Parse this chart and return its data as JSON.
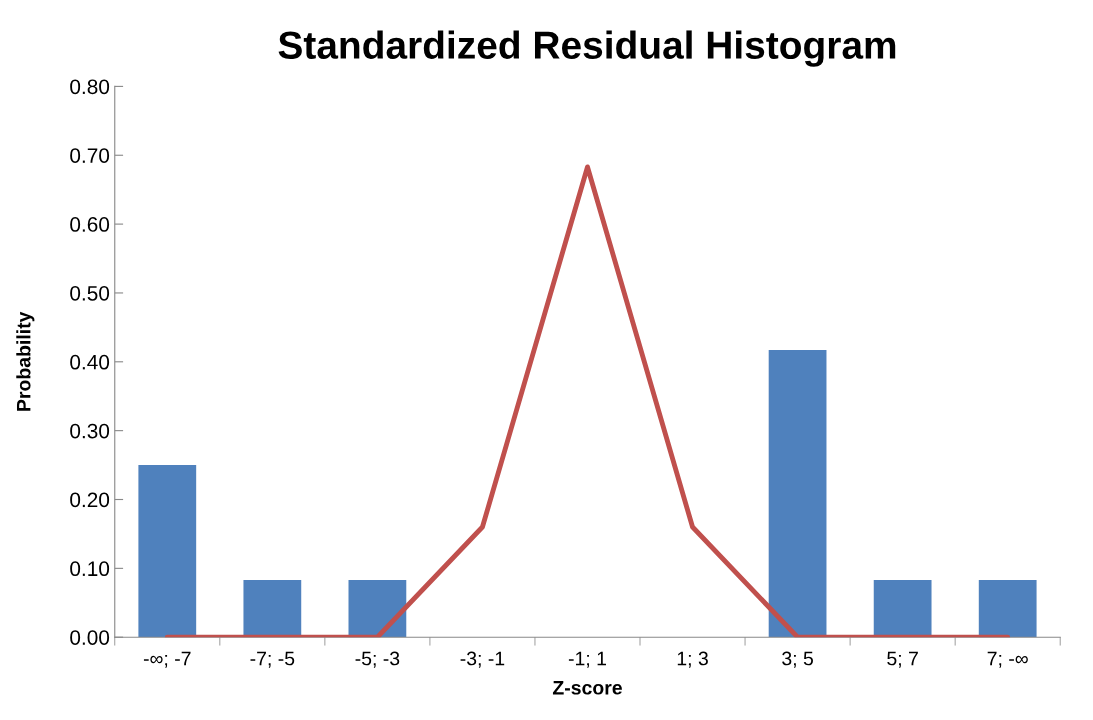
{
  "chart_data": {
    "type": "bar",
    "title": "Standardized Residual Histogram",
    "xlabel": "Z-score",
    "ylabel": "Probability",
    "categories": [
      "-∞; -7",
      "-7; -5",
      "-5; -3",
      "-3; -1",
      "-1; 1",
      "1; 3",
      "3; 5",
      "5; 7",
      "7; -∞"
    ],
    "series": [
      {
        "color": "#4f81bd",
        "values": [
          0.25,
          0.083,
          0.083,
          0,
          0,
          0,
          0.417,
          0.083,
          0.083
        ]
      },
      {
        "type": "line",
        "color": "#c0504d",
        "values": [
          0.0,
          0.0,
          0.0,
          0.16,
          0.683,
          0.16,
          0.0,
          0.0,
          0.0
        ]
      }
    ],
    "ylim": [
      0,
      0.8
    ],
    "yticks": [
      {
        "value": 0,
        "label": "0.00"
      },
      {
        "value": 0.1,
        "label": "0.10"
      },
      {
        "value": 0.2,
        "label": "0.20"
      },
      {
        "value": 0.3,
        "label": "0.30"
      },
      {
        "value": 0.4,
        "label": "0.40"
      },
      {
        "value": 0.5,
        "label": "0.50"
      },
      {
        "value": 0.6,
        "label": "0.60"
      },
      {
        "value": 0.7,
        "label": "0.70"
      },
      {
        "value": 0.8,
        "label": "0.80"
      }
    ],
    "grid": false,
    "legend": false,
    "marker": "none",
    "line_style": "solid"
  }
}
